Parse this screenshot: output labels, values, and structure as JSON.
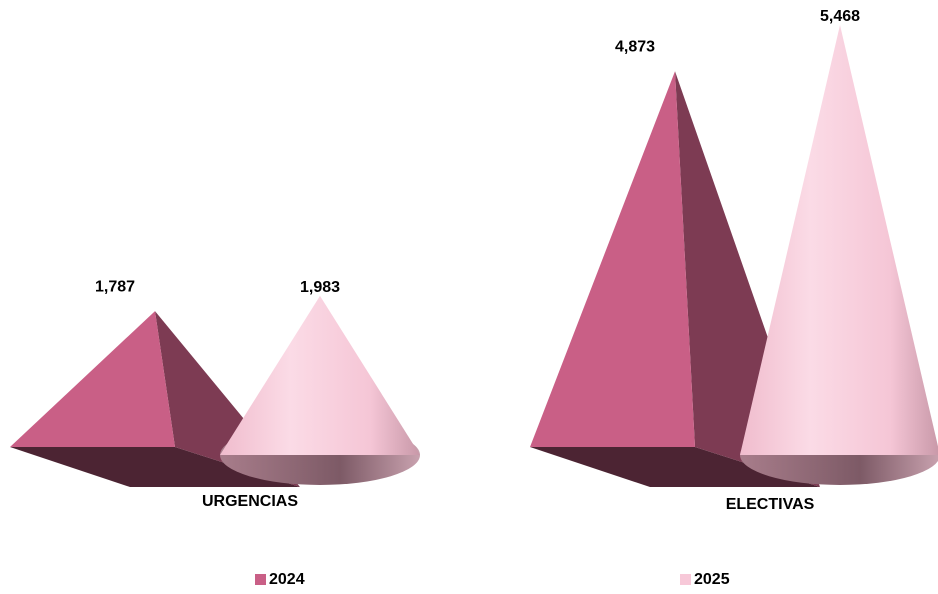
{
  "chart_data": {
    "type": "bar3d",
    "categories": [
      "URGENCIAS",
      "ELECTIVAS"
    ],
    "series": [
      {
        "name": "2024",
        "color": "#c95f86",
        "shape": "pyramid",
        "values": [
          1787,
          4873
        ],
        "value_labels": [
          "1,787",
          "4,873"
        ]
      },
      {
        "name": "2025",
        "color": "#f7c8d8",
        "shape": "cone",
        "values": [
          1983,
          5468
        ],
        "value_labels": [
          "1,983",
          "5,468"
        ]
      }
    ],
    "legend": "bottom"
  }
}
